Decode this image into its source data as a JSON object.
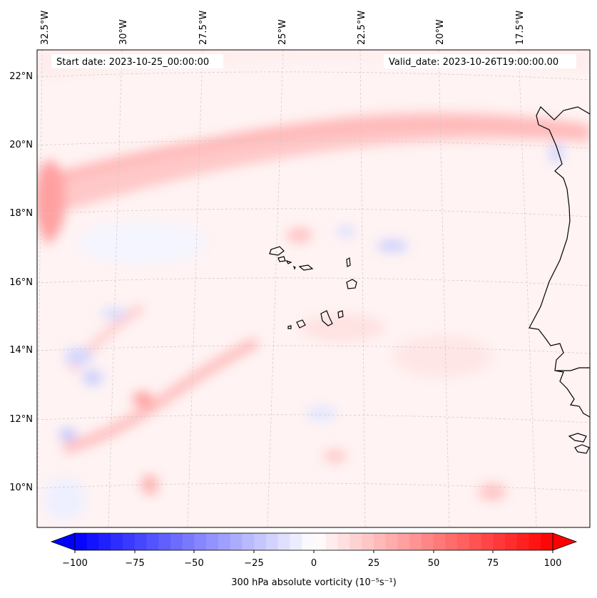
{
  "header": {
    "start_date": "Start date: 2023-10-25_00:00:00",
    "valid_date": "Valid_date: 2023-10-26T19:00:00.00"
  },
  "map": {
    "projection": "conic",
    "lon_labels": [
      "32.5°W",
      "30°W",
      "27.5°W",
      "25°W",
      "22.5°W",
      "20°W",
      "17.5°W"
    ],
    "lat_labels": [
      "22°N",
      "20°N",
      "18°N",
      "16°N",
      "14°N",
      "12°N",
      "10°N"
    ],
    "gridlines": true,
    "coastline_color": "#000000"
  },
  "colorbar": {
    "label": "300 hPa absolute vorticity (10⁻⁵s⁻¹)",
    "ticks": [
      "−100",
      "−75",
      "−50",
      "−25",
      "0",
      "25",
      "50",
      "75",
      "100"
    ],
    "min": -100,
    "max": 100,
    "levels": 40,
    "extend": "both",
    "cmap": "bwr",
    "low_color": "#0000ff",
    "mid_color": "#ffffff",
    "high_color": "#ff0000"
  }
}
